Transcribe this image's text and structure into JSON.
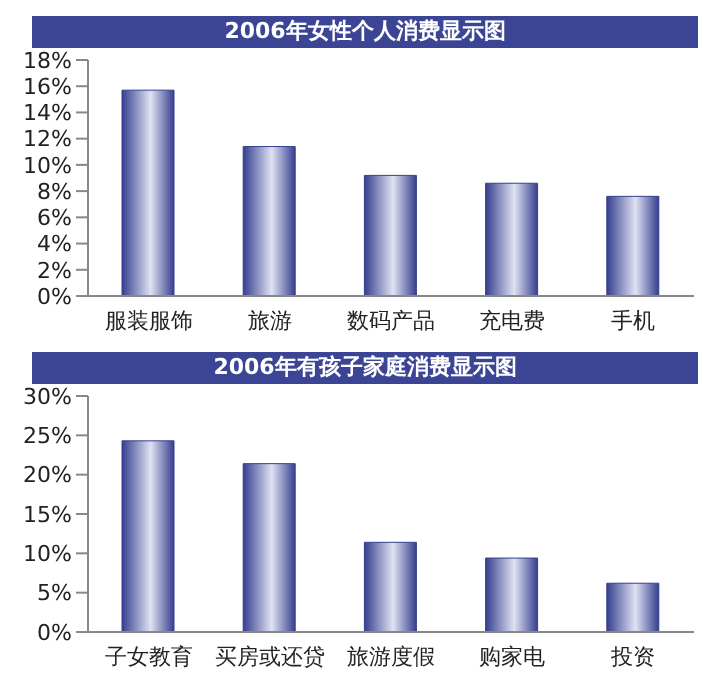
{
  "chart_data": [
    {
      "type": "bar",
      "title": "2006年女性个人消费显示图",
      "categories": [
        "服装服饰",
        "旅游",
        "数码产品",
        "充电费",
        "手机"
      ],
      "values": [
        15.7,
        11.4,
        9.2,
        8.6,
        7.6
      ],
      "color": "#353f8f",
      "ylim": [
        0,
        18
      ],
      "yticks": [
        {
          "value": 0,
          "label": "0%"
        },
        {
          "value": 2,
          "label": "2%"
        },
        {
          "value": 4,
          "label": "4%"
        },
        {
          "value": 6,
          "label": "6%"
        },
        {
          "value": 8,
          "label": "8%"
        },
        {
          "value": 10,
          "label": "10%"
        },
        {
          "value": 12,
          "label": "12%"
        },
        {
          "value": 14,
          "label": "14%"
        },
        {
          "value": 16,
          "label": "16%"
        },
        {
          "value": 18,
          "label": "18%"
        }
      ],
      "grid": false,
      "legend": false
    },
    {
      "type": "bar",
      "title": "2006年有孩子家庭消费显示图",
      "categories": [
        "子女教育",
        "买房或还贷",
        "旅游度假",
        "购家电",
        "投资"
      ],
      "values": [
        24.3,
        21.4,
        11.4,
        9.4,
        6.2
      ],
      "color": "#353f8f",
      "ylim": [
        0,
        30
      ],
      "yticks": [
        {
          "value": 0,
          "label": "0%"
        },
        {
          "value": 5,
          "label": "5%"
        },
        {
          "value": 10,
          "label": "10%"
        },
        {
          "value": 15,
          "label": "15%"
        },
        {
          "value": 20,
          "label": "20%"
        },
        {
          "value": 25,
          "label": "25%"
        },
        {
          "value": 30,
          "label": "30%"
        }
      ],
      "grid": false,
      "legend": false
    }
  ]
}
